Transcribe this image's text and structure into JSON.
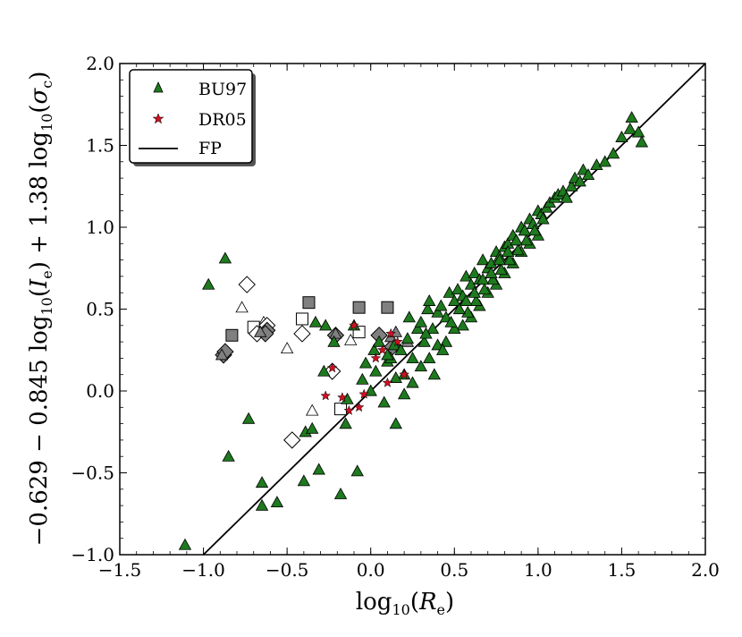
{
  "chart_data": {
    "type": "scatter",
    "title": "",
    "xlabel": "log10(Re)",
    "ylabel": "−0.629 − 0.845 log10(Ie) + 1.38 log10(σc)",
    "xlim": [
      -1.5,
      2.0
    ],
    "ylim": [
      -1.0,
      2.0
    ],
    "x_ticks": [
      "−1.5",
      "−1.0",
      "−0.5",
      "0.0",
      "0.5",
      "1.0",
      "1.5",
      "2.0"
    ],
    "y_ticks": [
      "−1.0",
      "−0.5",
      "0.0",
      "0.5",
      "1.0",
      "1.5",
      "2.0"
    ],
    "x_tick_values": [
      -1.5,
      -1.0,
      -0.5,
      0.0,
      0.5,
      1.0,
      1.5,
      2.0
    ],
    "y_tick_values": [
      -1.0,
      -0.5,
      0.0,
      0.5,
      1.0,
      1.5,
      2.0
    ],
    "grid": false,
    "legend_position": "top-left",
    "legend": [
      {
        "label": "BU97",
        "marker": "triangle",
        "color": "#1e7a1e"
      },
      {
        "label": "DR05",
        "marker": "star",
        "color": "#cc1122"
      },
      {
        "label": "FP",
        "marker": "line",
        "color": "#000000"
      }
    ],
    "fp_line": {
      "name": "FP",
      "x": [
        -1.0,
        2.0
      ],
      "y": [
        -1.0,
        2.0
      ]
    },
    "series": [
      {
        "name": "BU97",
        "marker": "triangle",
        "color": "#1e7a1e",
        "x": [
          -1.11,
          -0.97,
          -0.87,
          -0.85,
          -0.73,
          -0.65,
          -0.65,
          -0.56,
          -0.4,
          -0.39,
          -0.35,
          -0.33,
          -0.31,
          -0.28,
          -0.27,
          -0.22,
          -0.18,
          -0.15,
          -0.14,
          -0.1,
          -0.08,
          -0.05,
          -0.03,
          0.0,
          0.02,
          0.03,
          0.05,
          0.08,
          0.1,
          0.12,
          0.14,
          0.15,
          0.18,
          0.2,
          0.22,
          0.23,
          0.25,
          0.28,
          0.3,
          0.32,
          0.34,
          0.35,
          0.37,
          0.4,
          0.42,
          0.45,
          0.47,
          0.5,
          0.52,
          0.55,
          0.57,
          0.6,
          0.62,
          0.65,
          0.67,
          0.7,
          0.72,
          0.75,
          0.77,
          0.8,
          0.82,
          0.85,
          0.87,
          0.9,
          0.92,
          0.95,
          0.97,
          1.0,
          1.02,
          1.05,
          1.07,
          1.1,
          1.12,
          1.15,
          1.17,
          1.2,
          1.22,
          1.25,
          1.27,
          1.3,
          1.35,
          1.4,
          1.45,
          1.5,
          1.55,
          1.56,
          1.6,
          1.62,
          0.6,
          0.65,
          0.7,
          0.75,
          0.8,
          0.85,
          0.9,
          0.95,
          1.0,
          0.55,
          0.58,
          0.63,
          0.68,
          0.73,
          0.78,
          0.83,
          0.88,
          0.93,
          0.98,
          1.03,
          0.45,
          0.5,
          0.48,
          0.53,
          0.57,
          0.62,
          0.67,
          0.72,
          0.77,
          0.82,
          0.87,
          0.92,
          0.35,
          0.4,
          0.3,
          0.25,
          0.2,
          0.15,
          0.1,
          0.38,
          0.43,
          0.33
        ],
        "y": [
          -0.94,
          0.65,
          0.81,
          -0.4,
          -0.17,
          -0.56,
          -0.7,
          -0.68,
          -0.55,
          -0.25,
          -0.23,
          0.42,
          -0.48,
          0.12,
          0.4,
          0.3,
          -0.63,
          -0.2,
          -0.05,
          0.4,
          -0.49,
          0.07,
          0.17,
          0.0,
          0.25,
          0.12,
          0.3,
          -0.07,
          0.18,
          0.2,
          0.28,
          -0.2,
          0.25,
          0.1,
          0.32,
          0.45,
          0.2,
          0.38,
          0.42,
          0.3,
          0.5,
          0.55,
          0.38,
          0.48,
          0.52,
          0.45,
          0.6,
          0.55,
          0.62,
          0.58,
          0.7,
          0.65,
          0.72,
          0.68,
          0.8,
          0.75,
          0.78,
          0.85,
          0.82,
          0.88,
          0.9,
          0.95,
          0.92,
          1.0,
          0.98,
          1.05,
          1.02,
          1.1,
          1.08,
          1.12,
          1.15,
          1.18,
          1.2,
          1.22,
          1.18,
          1.25,
          1.3,
          1.28,
          1.35,
          1.32,
          1.38,
          1.4,
          1.45,
          1.55,
          1.6,
          1.67,
          1.58,
          1.52,
          0.45,
          0.52,
          0.6,
          0.65,
          0.72,
          0.78,
          0.85,
          0.9,
          0.95,
          0.4,
          0.48,
          0.55,
          0.62,
          0.68,
          0.74,
          0.8,
          0.86,
          0.92,
          0.98,
          1.05,
          0.3,
          0.38,
          0.42,
          0.5,
          0.55,
          0.6,
          0.68,
          0.72,
          0.8,
          0.85,
          0.92,
          0.98,
          0.2,
          0.28,
          0.15,
          0.05,
          -0.02,
          0.08,
          0.22,
          0.1,
          0.25,
          0.35
        ]
      },
      {
        "name": "DR05",
        "marker": "star",
        "color": "#cc1122",
        "x": [
          -0.27,
          -0.23,
          -0.17,
          -0.13,
          -0.1,
          -0.07,
          -0.04,
          0.03,
          0.07,
          0.1,
          0.12,
          0.16,
          0.2
        ],
        "y": [
          -0.03,
          0.14,
          -0.04,
          -0.12,
          0.4,
          -0.1,
          -0.02,
          0.2,
          0.25,
          0.05,
          0.35,
          0.3,
          0.1
        ]
      },
      {
        "name": "",
        "marker": "diamond-open",
        "color": "#ffffff",
        "x": [
          -0.74,
          -0.68,
          -0.62,
          -0.41,
          -0.23,
          -0.47
        ],
        "y": [
          0.65,
          0.35,
          0.4,
          0.35,
          0.12,
          -0.3
        ]
      },
      {
        "name": "",
        "marker": "diamond-filled",
        "color": "#808080",
        "x": [
          -0.88,
          -0.87,
          -0.62,
          -0.63,
          -0.21,
          0.05,
          0.13
        ],
        "y": [
          0.22,
          0.24,
          0.37,
          0.35,
          0.34,
          0.34,
          0.27
        ]
      },
      {
        "name": "",
        "marker": "square-open",
        "color": "#ffffff",
        "x": [
          -0.7,
          -0.41,
          -0.18,
          -0.07
        ],
        "y": [
          0.39,
          0.44,
          -0.11,
          0.36
        ]
      },
      {
        "name": "",
        "marker": "square-filled",
        "color": "#808080",
        "x": [
          -0.83,
          -0.37,
          -0.07,
          0.1
        ],
        "y": [
          0.34,
          0.54,
          0.51,
          0.51
        ]
      },
      {
        "name": "",
        "marker": "triangle-open",
        "color": "#ffffff",
        "x": [
          -0.77,
          -0.64,
          -0.5,
          -0.35,
          -0.12
        ],
        "y": [
          0.51,
          0.42,
          0.26,
          -0.12,
          0.31
        ]
      },
      {
        "name": "",
        "marker": "triangle-filled",
        "color": "#808080",
        "x": [
          -0.89,
          -0.66,
          -0.21,
          0.12,
          0.15,
          0.22
        ],
        "y": [
          0.22,
          0.36,
          0.35,
          0.33,
          0.36,
          0.3
        ]
      }
    ]
  }
}
